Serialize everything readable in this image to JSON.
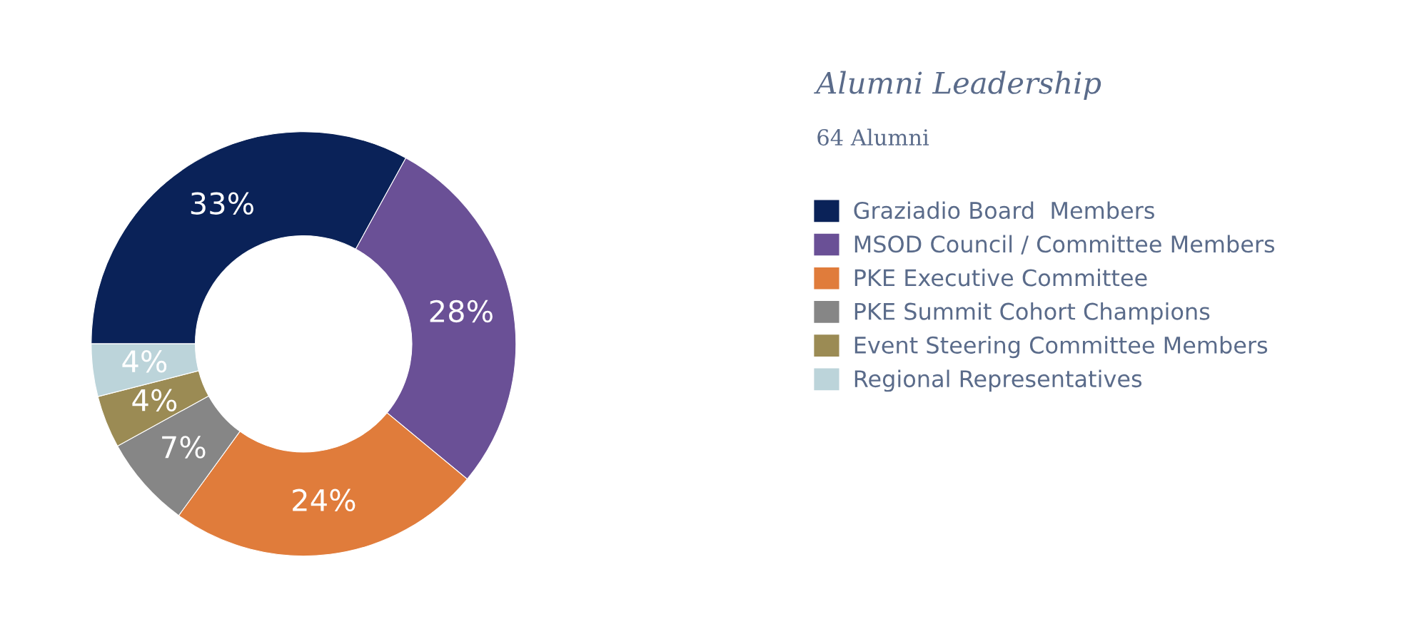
{
  "chart_data": {
    "type": "donut",
    "title": "Alumni Leadership",
    "subtitle": "64 Alumni",
    "categories": [
      "Graziadio Board  Members",
      "MSOD Council / Committee Members",
      "PKE Executive Committee",
      "PKE Summit Cohort Champions",
      "Event Steering Committee Members",
      "Regional Representatives"
    ],
    "values": [
      33,
      28,
      24,
      7,
      4,
      4
    ],
    "value_labels": [
      "33%",
      "28%",
      "24%",
      "7%",
      "4%",
      "4%"
    ],
    "colors": [
      "#0a2258",
      "#6a5096",
      "#e07c3b",
      "#868686",
      "#9b8b54",
      "#bcd4da"
    ],
    "legend": "right"
  }
}
